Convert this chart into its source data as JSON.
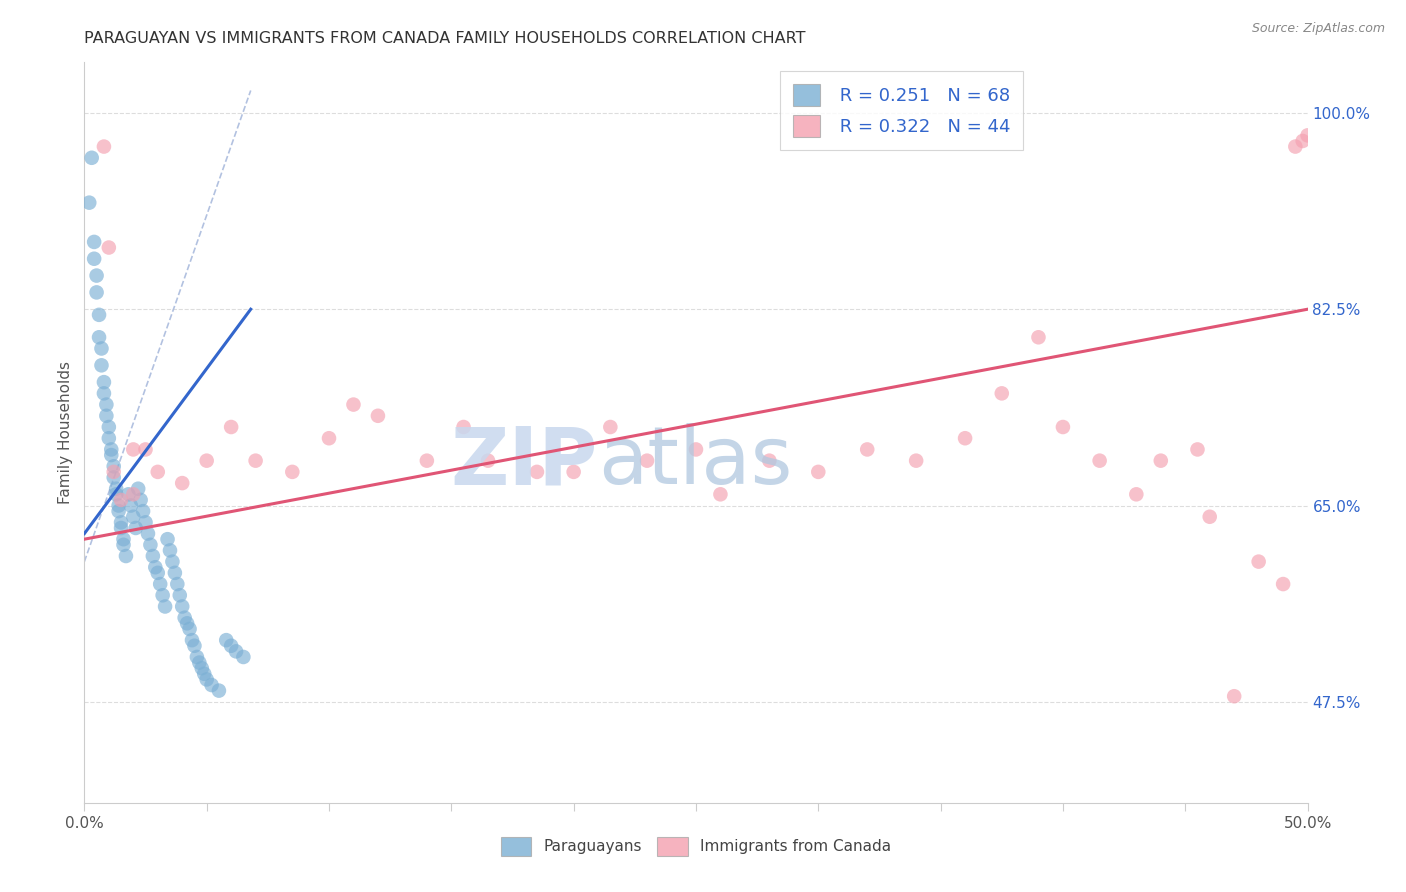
{
  "title": "PARAGUAYAN VS IMMIGRANTS FROM CANADA FAMILY HOUSEHOLDS CORRELATION CHART",
  "source": "Source: ZipAtlas.com",
  "ylabel": "Family Households",
  "xlim": [
    0.0,
    0.5
  ],
  "ylim": [
    0.385,
    1.045
  ],
  "ylabel_ticks": [
    "47.5%",
    "65.0%",
    "82.5%",
    "100.0%"
  ],
  "ylabel_vals": [
    0.475,
    0.65,
    0.825,
    1.0
  ],
  "blue_color": "#7BAFD4",
  "pink_color": "#F4A0B0",
  "blue_line_color": "#3366CC",
  "pink_line_color": "#E05575",
  "ref_line_color": "#AABBDD",
  "watermark_zip_color": "#C8D8EE",
  "watermark_atlas_color": "#B0C8E0",
  "paraguayans_x": [
    0.002,
    0.003,
    0.004,
    0.004,
    0.005,
    0.005,
    0.006,
    0.006,
    0.007,
    0.007,
    0.008,
    0.008,
    0.009,
    0.009,
    0.01,
    0.01,
    0.011,
    0.011,
    0.012,
    0.012,
    0.013,
    0.013,
    0.014,
    0.014,
    0.015,
    0.015,
    0.016,
    0.016,
    0.017,
    0.018,
    0.019,
    0.02,
    0.021,
    0.022,
    0.023,
    0.024,
    0.025,
    0.026,
    0.027,
    0.028,
    0.029,
    0.03,
    0.031,
    0.032,
    0.033,
    0.034,
    0.035,
    0.036,
    0.037,
    0.038,
    0.039,
    0.04,
    0.041,
    0.042,
    0.043,
    0.044,
    0.045,
    0.046,
    0.047,
    0.048,
    0.049,
    0.05,
    0.052,
    0.055,
    0.058,
    0.06,
    0.062,
    0.065
  ],
  "paraguayans_y": [
    0.92,
    0.96,
    0.885,
    0.87,
    0.855,
    0.84,
    0.82,
    0.8,
    0.79,
    0.775,
    0.76,
    0.75,
    0.74,
    0.73,
    0.72,
    0.71,
    0.7,
    0.695,
    0.685,
    0.675,
    0.665,
    0.66,
    0.65,
    0.645,
    0.635,
    0.63,
    0.62,
    0.615,
    0.605,
    0.66,
    0.65,
    0.64,
    0.63,
    0.665,
    0.655,
    0.645,
    0.635,
    0.625,
    0.615,
    0.605,
    0.595,
    0.59,
    0.58,
    0.57,
    0.56,
    0.62,
    0.61,
    0.6,
    0.59,
    0.58,
    0.57,
    0.56,
    0.55,
    0.545,
    0.54,
    0.53,
    0.525,
    0.515,
    0.51,
    0.505,
    0.5,
    0.495,
    0.49,
    0.485,
    0.53,
    0.525,
    0.52,
    0.515
  ],
  "canada_x": [
    0.008,
    0.01,
    0.012,
    0.015,
    0.02,
    0.02,
    0.025,
    0.03,
    0.04,
    0.05,
    0.06,
    0.07,
    0.085,
    0.1,
    0.11,
    0.12,
    0.14,
    0.155,
    0.165,
    0.185,
    0.2,
    0.215,
    0.23,
    0.25,
    0.26,
    0.28,
    0.3,
    0.32,
    0.34,
    0.36,
    0.375,
    0.39,
    0.4,
    0.415,
    0.43,
    0.44,
    0.455,
    0.46,
    0.47,
    0.48,
    0.49,
    0.495,
    0.498,
    0.5
  ],
  "canada_y": [
    0.97,
    0.88,
    0.68,
    0.655,
    0.7,
    0.66,
    0.7,
    0.68,
    0.67,
    0.69,
    0.72,
    0.69,
    0.68,
    0.71,
    0.74,
    0.73,
    0.69,
    0.72,
    0.69,
    0.68,
    0.68,
    0.72,
    0.69,
    0.7,
    0.66,
    0.69,
    0.68,
    0.7,
    0.69,
    0.71,
    0.75,
    0.8,
    0.72,
    0.69,
    0.66,
    0.69,
    0.7,
    0.64,
    0.48,
    0.6,
    0.58,
    0.97,
    0.975,
    0.98
  ],
  "blue_trend_x": [
    0.0,
    0.068
  ],
  "blue_trend_y": [
    0.625,
    0.825
  ],
  "pink_trend_x": [
    0.0,
    0.5
  ],
  "pink_trend_y": [
    0.62,
    0.825
  ],
  "ref_line_x": [
    0.0,
    0.068
  ],
  "ref_line_y": [
    0.6,
    1.02
  ]
}
